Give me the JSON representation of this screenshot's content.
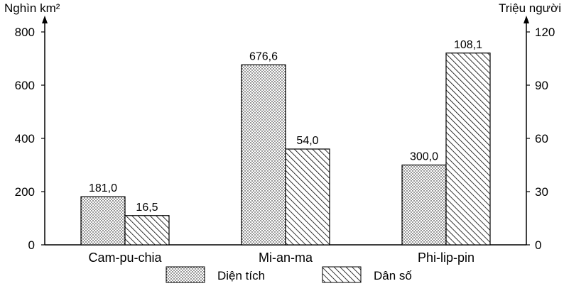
{
  "chart_data": {
    "type": "bar",
    "categories": [
      "Cam-pu-chia",
      "Mi-an-ma",
      "Phi-lip-pin"
    ],
    "series": [
      {
        "name": "Diện tích",
        "axis": "left",
        "values": [
          181.0,
          676.6,
          300.0
        ],
        "value_labels": [
          "181,0",
          "676,6",
          "300,0"
        ],
        "pattern": "dots"
      },
      {
        "name": "Dân số",
        "axis": "right",
        "values": [
          16.5,
          54.0,
          108.1
        ],
        "value_labels": [
          "16,5",
          "54,0",
          "108,1"
        ],
        "pattern": "diagonal-hatch"
      }
    ],
    "y_left": {
      "label": "Nghìn km²",
      "ticks": [
        "0",
        "200",
        "400",
        "600",
        "800"
      ],
      "tick_values": [
        0,
        200,
        400,
        600,
        800
      ],
      "ylim": [
        0,
        800
      ]
    },
    "y_right": {
      "label": "Triệu người",
      "ticks": [
        "0",
        "30",
        "60",
        "90",
        "120"
      ],
      "tick_values": [
        0,
        30,
        60,
        90,
        120
      ],
      "ylim": [
        0,
        120
      ]
    },
    "grid": false,
    "legend_position": "bottom-center",
    "colors": {
      "ink": "#000000",
      "fill": "#ffffff"
    }
  }
}
